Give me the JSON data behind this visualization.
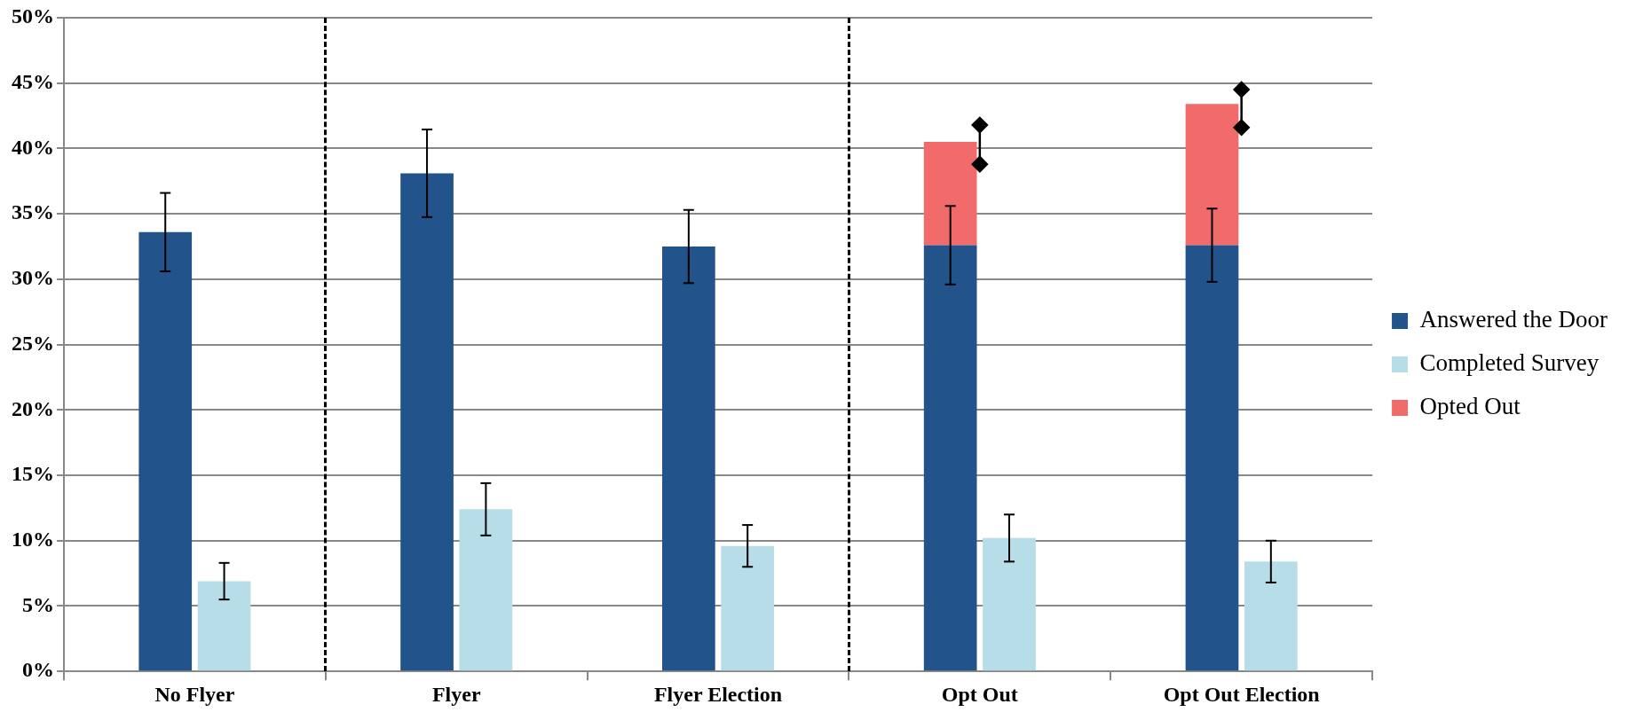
{
  "chart_data": {
    "type": "bar",
    "categories": [
      "No Flyer",
      "Flyer",
      "Flyer Election",
      "Opt Out",
      "Opt Out Election"
    ],
    "series": [
      {
        "name": "Answered the Door",
        "color": "#23538b",
        "values": [
          33.6,
          38.1,
          32.5,
          32.6,
          32.6
        ],
        "errors": [
          3.0,
          3.35,
          2.8,
          3.0,
          2.8
        ]
      },
      {
        "name": "Completed Survey",
        "color": "#b7dde8",
        "values": [
          6.9,
          12.4,
          9.6,
          10.2,
          8.4
        ],
        "errors": [
          1.4,
          2.0,
          1.6,
          1.8,
          1.6
        ]
      },
      {
        "name": "Opted Out",
        "color": "#f26b6b",
        "values": [
          null,
          null,
          null,
          7.9,
          10.8
        ],
        "base": [
          null,
          null,
          null,
          32.6,
          32.6
        ]
      },
      {
        "type": "line",
        "color": "#000000",
        "marker": "diamond",
        "x": [
          "Opt Out",
          "Opt Out",
          "Opt Out",
          "Opt Out Election",
          "Opt Out Election"
        ],
        "values": [
          38.8,
          41.8,
          null,
          41.6,
          44.5
        ]
      }
    ],
    "ylim": [
      0,
      50
    ],
    "yticks": [
      {
        "value": 0,
        "label": "0%"
      },
      {
        "value": 5,
        "label": "5%"
      },
      {
        "value": 10,
        "label": "10%"
      },
      {
        "value": 15,
        "label": "15%"
      },
      {
        "value": 20,
        "label": "20%"
      },
      {
        "value": 25,
        "label": "25%"
      },
      {
        "value": 30,
        "label": "30%"
      },
      {
        "value": 35,
        "label": "35%"
      },
      {
        "value": 40,
        "label": "40%"
      },
      {
        "value": 45,
        "label": "45%"
      },
      {
        "value": 50,
        "label": "50%"
      }
    ],
    "grid": "y",
    "legend": "right"
  }
}
